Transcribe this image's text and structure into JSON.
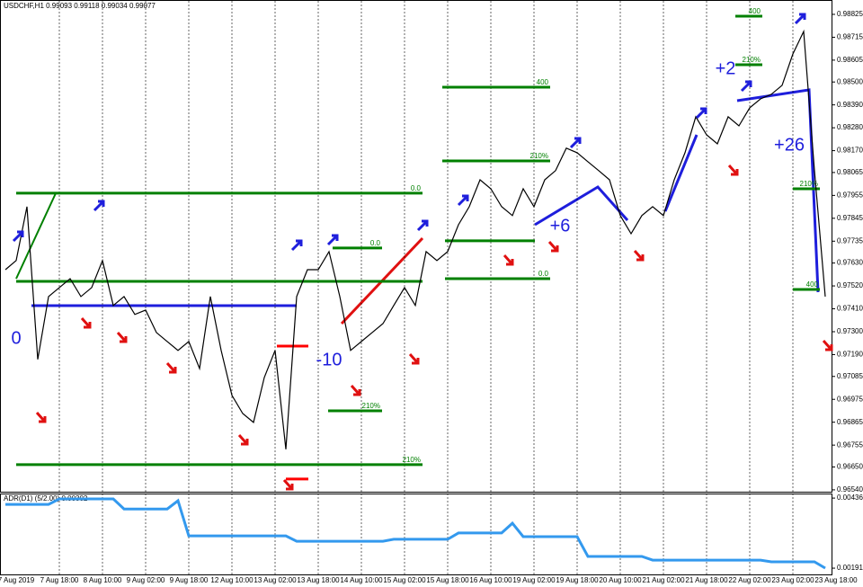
{
  "chart_data": [
    {
      "type": "line",
      "title": "USDCHF,H1  0.99093 0.99118 0.99034 0.99077",
      "color": "#000000",
      "categories": [
        null,
        "7 Aug 2019",
        null,
        null,
        null,
        "7 Aug 18:00",
        null,
        null,
        null,
        "8 Aug 10:00",
        null,
        null,
        null,
        "9 Aug 02:00",
        null,
        null,
        null,
        "9 Aug 18:00",
        null,
        null,
        null,
        "12 Aug 10:00",
        null,
        null,
        null,
        "13 Aug 02:00",
        null,
        null,
        null,
        "13 Aug 18:00",
        null,
        null,
        null,
        "14 Aug 10:00",
        null,
        null,
        null,
        "15 Aug 02:00",
        null,
        null,
        null,
        "15 Aug 18:00",
        null,
        null,
        null,
        "16 Aug 10:00",
        null,
        null,
        null,
        "19 Aug 02:00",
        null,
        null,
        null,
        "19 Aug 18:00",
        null,
        null,
        null,
        "20 Aug 10:00",
        null,
        null,
        null,
        "21 Aug 02:00",
        null,
        null,
        null,
        "21 Aug 18:00",
        null,
        null,
        null,
        "22 Aug 02:00",
        null,
        null,
        null,
        "23 Aug 02:00",
        null,
        null,
        null,
        "23 Aug 18:00"
      ],
      "values": [
        0.97598,
        0.97642,
        0.97901,
        0.97167,
        0.97469,
        0.97512,
        0.97555,
        0.97469,
        0.97512,
        0.97642,
        0.97426,
        0.97469,
        0.97383,
        0.97404,
        0.97296,
        0.97253,
        0.9721,
        0.97253,
        0.97123,
        0.97469,
        0.9721,
        0.96994,
        0.96907,
        0.96864,
        0.9708,
        0.9721,
        0.96735,
        0.97469,
        0.97598,
        0.97598,
        0.97685,
        0.97469,
        0.9721,
        0.97253,
        0.97296,
        0.97339,
        0.97426,
        0.97512,
        0.97426,
        0.97685,
        0.97642,
        0.97685,
        0.97814,
        0.97901,
        0.9803,
        0.97987,
        0.97901,
        0.97858,
        0.97987,
        0.97901,
        0.9803,
        0.98074,
        0.98182,
        0.9816,
        0.98117,
        0.98074,
        0.9803,
        0.97858,
        0.97771,
        0.97858,
        0.97901,
        0.97858,
        0.9803,
        0.9816,
        0.98333,
        0.98246,
        0.98203,
        0.98333,
        0.98289,
        0.98376,
        0.98419,
        0.98441,
        0.98484,
        0.98635,
        0.98743,
        0.98074,
        0.97469,
        null
      ],
      "ylim": [
        0.96531,
        0.98894
      ],
      "yticks": [
        0.98825,
        0.98715,
        0.98605,
        {
          "value": 0.985,
          "label": "0.98500"
        },
        {
          "value": 0.9839,
          "label": "0.98390"
        },
        {
          "value": 0.9828,
          "label": "0.98280"
        },
        {
          "value": 0.9817,
          "label": "0.98170"
        },
        0.98065,
        0.97955,
        0.97845,
        0.97735,
        {
          "value": 0.9763,
          "label": "0.97630"
        },
        {
          "value": 0.9752,
          "label": "0.97520"
        },
        {
          "value": 0.9741,
          "label": "0.97410"
        },
        {
          "value": 0.973,
          "label": "0.97300"
        },
        {
          "value": 0.9719,
          "label": "0.97190"
        },
        0.97085,
        0.96975,
        0.96865,
        0.96755,
        {
          "value": 0.9665,
          "label": "0.96650"
        },
        {
          "value": 0.9654,
          "label": "0.96540"
        }
      ],
      "grid": true,
      "levels": [
        {
          "value": 0.97966,
          "label": "0.0",
          "color": "#008000"
        },
        {
          "value": 0.97542,
          "color": "#008000"
        },
        {
          "value": 0.96661,
          "label": "210%",
          "color": "#008000"
        },
        {
          "value": 0.98475,
          "label": "400",
          "color": "#008000"
        },
        {
          "value": 0.98121,
          "label": "210%",
          "color": "#008000"
        },
        {
          "value": 0.97555,
          "label": "0.0",
          "color": "#008000"
        },
        {
          "value": 0.97737,
          "color": "#008000"
        },
        {
          "value": 0.97702,
          "label": "0.0",
          "color": "#008000"
        },
        {
          "value": 0.9692,
          "label": "210%",
          "color": "#008000"
        },
        {
          "value": 0.98816,
          "label": "400",
          "color": "#008000"
        },
        {
          "value": 0.98583,
          "label": "210%",
          "color": "#008000"
        },
        {
          "value": 0.97987,
          "label": "210%",
          "color": "#008000"
        },
        {
          "value": 0.97503,
          "label": "400",
          "color": "#008000"
        },
        {
          "value": 0.97231,
          "color": "#ff0000"
        },
        {
          "value": 0.96592,
          "color": "#ff0000"
        }
      ],
      "annotations": [
        "0",
        "-10",
        "+6",
        "+2",
        "+26"
      ]
    },
    {
      "type": "line",
      "title": "ADR(D1) (5/2.00) 0.00302",
      "color": "#3399ee",
      "values": [
        0.00414,
        0.00414,
        0.00414,
        0.00414,
        0.00414,
        0.00433,
        0.00433,
        0.00433,
        0.00433,
        0.00433,
        0.00433,
        0.00398,
        0.00398,
        0.00398,
        0.00398,
        0.00398,
        0.00427,
        0.00304,
        0.00304,
        0.00304,
        0.00304,
        0.00304,
        0.00304,
        0.00304,
        0.00304,
        0.00304,
        0.00304,
        0.00285,
        0.00285,
        0.00285,
        0.00285,
        0.00285,
        0.00285,
        0.00285,
        0.00285,
        0.00285,
        0.00292,
        0.00292,
        0.00292,
        0.00292,
        0.00292,
        0.00292,
        0.00314,
        0.00314,
        0.00314,
        0.00314,
        0.00314,
        0.00348,
        0.00301,
        0.00301,
        0.00301,
        0.00301,
        0.00301,
        0.00301,
        0.00232,
        0.00232,
        0.00232,
        0.00232,
        0.00232,
        0.00232,
        0.00219,
        0.00219,
        0.00219,
        0.00219,
        0.00219,
        0.00219,
        0.00219,
        0.00219,
        0.00219,
        0.00219,
        0.00219,
        0.00213,
        0.00213,
        0.00213,
        0.00213,
        0.00213,
        0.00191,
        null
      ],
      "ylim": [
        0.00166,
        0.00452
      ],
      "yticks": [
        0.00436,
        0.00191
      ]
    }
  ]
}
